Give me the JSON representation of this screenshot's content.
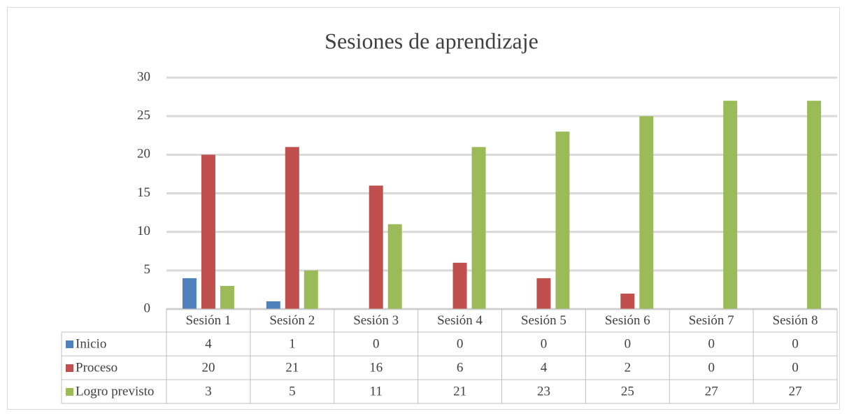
{
  "chart_data": {
    "type": "bar",
    "title": "Sesiones de aprendizaje",
    "categories": [
      "Sesión 1",
      "Sesión 2",
      "Sesión 3",
      "Sesión 4",
      "Sesión 5",
      "Sesión 6",
      "Sesión 7",
      "Sesión 8"
    ],
    "series": [
      {
        "name": "Inicio",
        "color": "#4f81bd",
        "values": [
          4,
          1,
          0,
          0,
          0,
          0,
          0,
          0
        ]
      },
      {
        "name": "Proceso",
        "color": "#c0504d",
        "values": [
          20,
          21,
          16,
          6,
          4,
          2,
          0,
          0
        ]
      },
      {
        "name": "Logro previsto",
        "color": "#9bbb59",
        "values": [
          3,
          5,
          11,
          21,
          23,
          25,
          27,
          27
        ]
      }
    ],
    "ylim": [
      0,
      30
    ],
    "yticks": [
      0,
      5,
      10,
      15,
      20,
      25,
      30
    ],
    "grid": true,
    "data_table": true
  }
}
